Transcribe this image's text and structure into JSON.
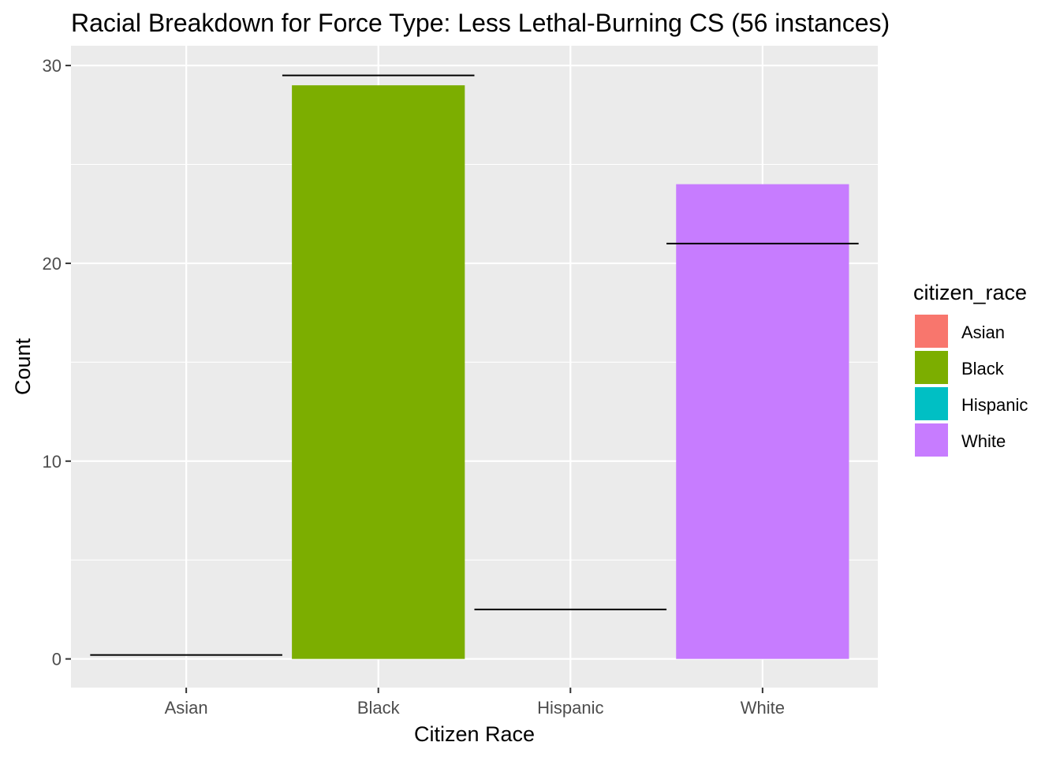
{
  "chart_data": {
    "type": "bar",
    "title": "Racial Breakdown for Force Type: Less Lethal-Burning CS (56 instances)",
    "xlabel": "Citizen Race",
    "ylabel": "Count",
    "categories": [
      "Asian",
      "Black",
      "Hispanic",
      "White"
    ],
    "values": [
      0,
      29,
      0,
      24
    ],
    "reference_values": [
      0.2,
      29.5,
      2.5,
      21
    ],
    "colors": [
      "#F8766D",
      "#7CAE00",
      "#00BFC4",
      "#C77CFF"
    ],
    "ylim": [
      -1.45,
      31.0
    ],
    "yticks": [
      0,
      10,
      20,
      30
    ],
    "grid": true,
    "legend": {
      "title": "citizen_race",
      "position": "right",
      "entries": [
        "Asian",
        "Black",
        "Hispanic",
        "White"
      ]
    },
    "panel_background": "#EBEBEB",
    "grid_color": "#FFFFFF",
    "reference_line_color": "#000000"
  }
}
